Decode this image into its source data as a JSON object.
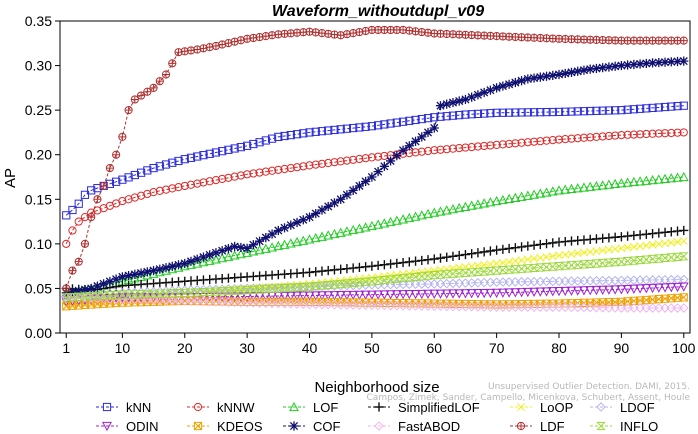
{
  "chart_data": {
    "type": "line",
    "title": "Waveform_withoutdupl_v09",
    "xlabel": "Neighborhood size",
    "ylabel": "AP",
    "xlim": [
      0,
      101
    ],
    "ylim": [
      0,
      0.35
    ],
    "x_ticks": [
      1,
      10,
      20,
      30,
      40,
      50,
      60,
      70,
      80,
      90,
      100
    ],
    "x_tick_labels": [
      "1",
      "10",
      "20",
      "30",
      "40",
      "50",
      "60",
      "70",
      "80",
      "90",
      "100"
    ],
    "y_ticks": [
      0,
      0.05,
      0.1,
      0.15,
      0.2,
      0.25,
      0.3,
      0.35
    ],
    "y_tick_labels": [
      "0.00",
      "0.05",
      "0.10",
      "0.15",
      "0.20",
      "0.25",
      "0.30",
      "0.35"
    ],
    "legend_position": "bottom",
    "credit_line1": "Unsupervised Outlier Detection. DAMI, 2015.",
    "credit_line2": "Campos, Zimek, Sander, Campello, Micenkova, Schubert, Assent, Houle",
    "series": [
      {
        "name": "kNN",
        "color": "#2a2add",
        "marker": "square",
        "anchors": [
          [
            1,
            0.132
          ],
          [
            2,
            0.138
          ],
          [
            3,
            0.145
          ],
          [
            4,
            0.155
          ],
          [
            5,
            0.16
          ],
          [
            7,
            0.165
          ],
          [
            10,
            0.172
          ],
          [
            15,
            0.185
          ],
          [
            20,
            0.195
          ],
          [
            30,
            0.21
          ],
          [
            35,
            0.22
          ],
          [
            40,
            0.225
          ],
          [
            50,
            0.232
          ],
          [
            60,
            0.242
          ],
          [
            65,
            0.245
          ],
          [
            70,
            0.247
          ],
          [
            80,
            0.248
          ],
          [
            90,
            0.25
          ],
          [
            100,
            0.255
          ]
        ]
      },
      {
        "name": "kNNW",
        "color": "#dd2a2a",
        "marker": "circle",
        "anchors": [
          [
            1,
            0.1
          ],
          [
            2,
            0.115
          ],
          [
            3,
            0.125
          ],
          [
            5,
            0.135
          ],
          [
            7,
            0.14
          ],
          [
            10,
            0.148
          ],
          [
            15,
            0.158
          ],
          [
            20,
            0.165
          ],
          [
            30,
            0.178
          ],
          [
            40,
            0.188
          ],
          [
            50,
            0.197
          ],
          [
            60,
            0.205
          ],
          [
            70,
            0.211
          ],
          [
            80,
            0.217
          ],
          [
            90,
            0.222
          ],
          [
            100,
            0.225
          ]
        ]
      },
      {
        "name": "LOF",
        "color": "#22cc22",
        "marker": "triangle-up",
        "anchors": [
          [
            1,
            0.045
          ],
          [
            5,
            0.05
          ],
          [
            10,
            0.058
          ],
          [
            20,
            0.075
          ],
          [
            30,
            0.09
          ],
          [
            40,
            0.105
          ],
          [
            50,
            0.12
          ],
          [
            60,
            0.135
          ],
          [
            70,
            0.148
          ],
          [
            80,
            0.16
          ],
          [
            90,
            0.168
          ],
          [
            100,
            0.175
          ]
        ]
      },
      {
        "name": "SimplifiedLOF",
        "color": "#111111",
        "marker": "plus",
        "anchors": [
          [
            1,
            0.05
          ],
          [
            5,
            0.048
          ],
          [
            10,
            0.053
          ],
          [
            20,
            0.058
          ],
          [
            30,
            0.063
          ],
          [
            40,
            0.068
          ],
          [
            50,
            0.075
          ],
          [
            60,
            0.083
          ],
          [
            70,
            0.093
          ],
          [
            80,
            0.102
          ],
          [
            90,
            0.108
          ],
          [
            100,
            0.115
          ]
        ]
      },
      {
        "name": "LoOP",
        "color": "#f0f020",
        "marker": "x",
        "anchors": [
          [
            1,
            0.04
          ],
          [
            10,
            0.042
          ],
          [
            20,
            0.045
          ],
          [
            30,
            0.05
          ],
          [
            40,
            0.055
          ],
          [
            50,
            0.062
          ],
          [
            60,
            0.07
          ],
          [
            70,
            0.078
          ],
          [
            80,
            0.087
          ],
          [
            90,
            0.095
          ],
          [
            100,
            0.103
          ]
        ]
      },
      {
        "name": "LDOF",
        "color": "#b4b4f0",
        "marker": "diamond",
        "anchors": [
          [
            1,
            0.042
          ],
          [
            10,
            0.045
          ],
          [
            20,
            0.048
          ],
          [
            30,
            0.05
          ],
          [
            40,
            0.052
          ],
          [
            50,
            0.054
          ],
          [
            60,
            0.055
          ],
          [
            70,
            0.057
          ],
          [
            80,
            0.058
          ],
          [
            90,
            0.059
          ],
          [
            100,
            0.06
          ]
        ]
      },
      {
        "name": "ODIN",
        "color": "#a020d0",
        "marker": "triangle-down",
        "anchors": [
          [
            1,
            0.035
          ],
          [
            5,
            0.038
          ],
          [
            10,
            0.04
          ],
          [
            20,
            0.04
          ],
          [
            30,
            0.041
          ],
          [
            40,
            0.042
          ],
          [
            50,
            0.043
          ],
          [
            60,
            0.044
          ],
          [
            70,
            0.045
          ],
          [
            80,
            0.047
          ],
          [
            90,
            0.049
          ],
          [
            100,
            0.052
          ]
        ]
      },
      {
        "name": "KDEOS",
        "color": "#f0a000",
        "marker": "square-x",
        "anchors": [
          [
            1,
            0.03
          ],
          [
            5,
            0.032
          ],
          [
            10,
            0.034
          ],
          [
            20,
            0.036
          ],
          [
            30,
            0.035
          ],
          [
            40,
            0.035
          ],
          [
            50,
            0.034
          ],
          [
            60,
            0.033
          ],
          [
            70,
            0.032
          ],
          [
            80,
            0.033
          ],
          [
            90,
            0.035
          ],
          [
            100,
            0.04
          ]
        ]
      },
      {
        "name": "COF",
        "color": "#101070",
        "marker": "star",
        "anchors": [
          [
            1,
            0.045
          ],
          [
            5,
            0.05
          ],
          [
            10,
            0.063
          ],
          [
            15,
            0.07
          ],
          [
            20,
            0.078
          ],
          [
            25,
            0.09
          ],
          [
            28,
            0.097
          ],
          [
            30,
            0.095
          ],
          [
            32,
            0.103
          ],
          [
            35,
            0.115
          ],
          [
            40,
            0.13
          ],
          [
            45,
            0.15
          ],
          [
            50,
            0.175
          ],
          [
            55,
            0.205
          ],
          [
            60,
            0.23
          ],
          [
            61,
            0.255
          ],
          [
            65,
            0.262
          ],
          [
            70,
            0.275
          ],
          [
            75,
            0.285
          ],
          [
            80,
            0.29
          ],
          [
            85,
            0.296
          ],
          [
            90,
            0.3
          ],
          [
            95,
            0.303
          ],
          [
            100,
            0.305
          ]
        ]
      },
      {
        "name": "FastABOD",
        "color": "#f0b4f0",
        "marker": "diamond",
        "anchors": [
          [
            1,
            0.04
          ],
          [
            10,
            0.038
          ],
          [
            20,
            0.036
          ],
          [
            30,
            0.034
          ],
          [
            40,
            0.032
          ],
          [
            50,
            0.031
          ],
          [
            60,
            0.03
          ],
          [
            70,
            0.029
          ],
          [
            80,
            0.029
          ],
          [
            90,
            0.028
          ],
          [
            100,
            0.028
          ]
        ]
      },
      {
        "name": "LDF",
        "color": "#b03030",
        "marker": "circle-plus",
        "anchors": [
          [
            1,
            0.05
          ],
          [
            2,
            0.07
          ],
          [
            3,
            0.08
          ],
          [
            4,
            0.1
          ],
          [
            5,
            0.13
          ],
          [
            6,
            0.15
          ],
          [
            7,
            0.165
          ],
          [
            8,
            0.185
          ],
          [
            9,
            0.2
          ],
          [
            10,
            0.22
          ],
          [
            11,
            0.25
          ],
          [
            12,
            0.262
          ],
          [
            15,
            0.275
          ],
          [
            17,
            0.29
          ],
          [
            19,
            0.315
          ],
          [
            22,
            0.318
          ],
          [
            25,
            0.322
          ],
          [
            30,
            0.33
          ],
          [
            35,
            0.335
          ],
          [
            40,
            0.338
          ],
          [
            45,
            0.334
          ],
          [
            50,
            0.34
          ],
          [
            55,
            0.34
          ],
          [
            60,
            0.336
          ],
          [
            70,
            0.333
          ],
          [
            80,
            0.33
          ],
          [
            90,
            0.328
          ],
          [
            100,
            0.328
          ]
        ]
      },
      {
        "name": "INFLO",
        "color": "#9cd83c",
        "marker": "hourglass",
        "anchors": [
          [
            1,
            0.04
          ],
          [
            10,
            0.043
          ],
          [
            20,
            0.045
          ],
          [
            30,
            0.048
          ],
          [
            40,
            0.052
          ],
          [
            50,
            0.058
          ],
          [
            60,
            0.065
          ],
          [
            70,
            0.07
          ],
          [
            80,
            0.075
          ],
          [
            90,
            0.08
          ],
          [
            100,
            0.086
          ]
        ]
      }
    ]
  }
}
